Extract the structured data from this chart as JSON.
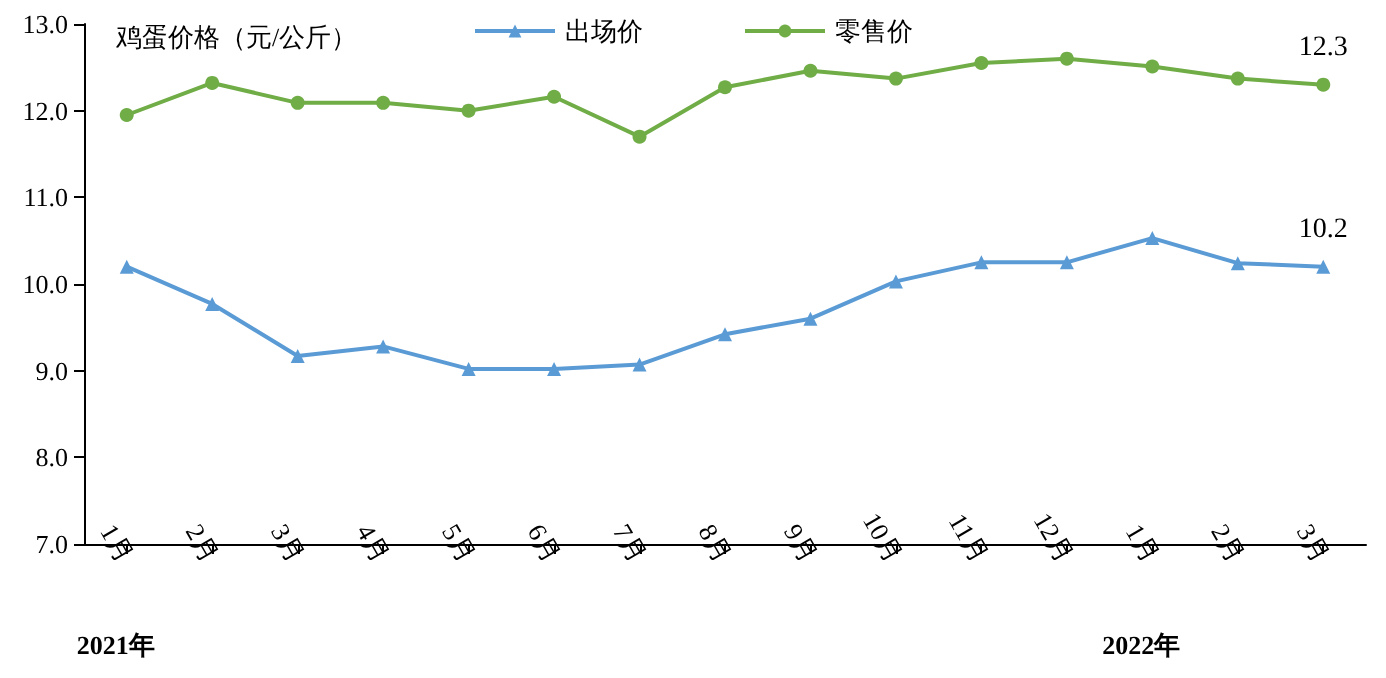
{
  "chart_data": {
    "type": "line",
    "ylabel": "鸡蛋价格（元/公斤）",
    "categories": [
      "1月",
      "2月",
      "3月",
      "4月",
      "5月",
      "6月",
      "7月",
      "8月",
      "9月",
      "10月",
      "11月",
      "12月",
      "1月",
      "2月",
      "3月"
    ],
    "series": [
      {
        "name": "出场价",
        "color": "#5b9bd5",
        "marker": "triangle",
        "values": [
          10.2,
          9.77,
          9.17,
          9.28,
          9.02,
          9.02,
          9.07,
          9.42,
          9.6,
          10.03,
          10.25,
          10.25,
          10.53,
          10.24,
          10.2
        ],
        "value_labels": [
          null,
          null,
          null,
          null,
          null,
          null,
          null,
          null,
          null,
          null,
          null,
          null,
          null,
          null,
          "10.2"
        ]
      },
      {
        "name": "零售价",
        "color": "#70ad47",
        "marker": "circle",
        "values": [
          11.95,
          12.32,
          12.09,
          12.09,
          12.0,
          12.16,
          11.7,
          12.27,
          12.46,
          12.37,
          12.55,
          12.6,
          12.51,
          12.37,
          12.3
        ],
        "value_labels": [
          null,
          null,
          null,
          null,
          null,
          null,
          null,
          null,
          null,
          null,
          null,
          null,
          null,
          null,
          "12.3"
        ]
      }
    ],
    "ylim": [
      7,
      13
    ],
    "yticks": [
      {
        "value": 7,
        "label": "7.0"
      },
      {
        "value": 8,
        "label": "8.0"
      },
      {
        "value": 9,
        "label": "9.0"
      },
      {
        "value": 10,
        "label": "10.0"
      },
      {
        "value": 11,
        "label": "11.0"
      },
      {
        "value": 12,
        "label": "12.0"
      },
      {
        "value": 13,
        "label": "13.0"
      }
    ],
    "annotations": [
      "2021年",
      "2022年"
    ],
    "legend": "top",
    "grid": false
  }
}
